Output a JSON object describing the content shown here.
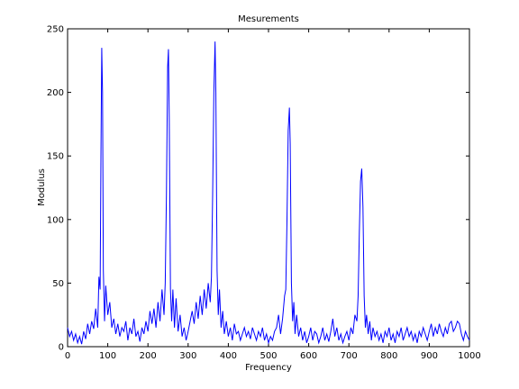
{
  "chart_data": {
    "type": "line",
    "title": "Mesurements",
    "x_label": "Frequency",
    "y_label": "Modulus",
    "x": [
      0,
      5,
      10,
      15,
      20,
      25,
      30,
      35,
      40,
      45,
      50,
      55,
      60,
      65,
      70,
      75,
      78,
      81,
      83,
      85,
      87,
      89,
      92,
      95,
      100,
      105,
      110,
      115,
      120,
      125,
      130,
      135,
      140,
      145,
      150,
      155,
      160,
      165,
      170,
      175,
      180,
      185,
      190,
      195,
      200,
      205,
      210,
      215,
      220,
      225,
      230,
      235,
      240,
      243,
      246,
      249,
      251,
      253,
      256,
      259,
      262,
      266,
      270,
      275,
      280,
      285,
      290,
      295,
      300,
      305,
      310,
      315,
      320,
      325,
      330,
      335,
      340,
      345,
      350,
      355,
      358,
      361,
      364,
      367,
      369,
      372,
      375,
      378,
      382,
      386,
      390,
      395,
      400,
      405,
      410,
      415,
      420,
      425,
      430,
      435,
      440,
      445,
      450,
      455,
      460,
      465,
      470,
      475,
      480,
      485,
      490,
      495,
      500,
      505,
      510,
      515,
      520,
      525,
      530,
      535,
      540,
      543,
      546,
      549,
      552,
      554,
      557,
      560,
      563,
      566,
      570,
      575,
      580,
      585,
      590,
      595,
      600,
      605,
      610,
      615,
      620,
      625,
      630,
      635,
      640,
      645,
      650,
      655,
      660,
      665,
      670,
      675,
      680,
      685,
      690,
      695,
      700,
      705,
      710,
      715,
      720,
      723,
      726,
      729,
      732,
      735,
      738,
      741,
      744,
      748,
      752,
      756,
      760,
      765,
      770,
      775,
      780,
      785,
      790,
      795,
      800,
      805,
      810,
      815,
      820,
      825,
      830,
      835,
      840,
      845,
      850,
      855,
      860,
      865,
      870,
      875,
      880,
      885,
      890,
      895,
      900,
      905,
      910,
      915,
      920,
      925,
      930,
      935,
      940,
      945,
      950,
      955,
      960,
      965,
      970,
      975,
      980,
      985,
      990,
      995,
      1000
    ],
    "values": [
      15,
      8,
      12,
      5,
      10,
      3,
      8,
      2,
      12,
      6,
      18,
      10,
      20,
      14,
      30,
      15,
      55,
      45,
      150,
      235,
      200,
      60,
      20,
      48,
      25,
      35,
      15,
      22,
      10,
      18,
      8,
      15,
      12,
      20,
      5,
      15,
      10,
      22,
      8,
      12,
      4,
      15,
      10,
      20,
      12,
      28,
      18,
      30,
      15,
      35,
      20,
      45,
      25,
      50,
      120,
      220,
      234,
      180,
      45,
      20,
      45,
      15,
      38,
      12,
      25,
      8,
      15,
      5,
      12,
      20,
      28,
      18,
      35,
      22,
      40,
      25,
      45,
      30,
      50,
      35,
      55,
      120,
      200,
      240,
      200,
      60,
      25,
      45,
      15,
      28,
      10,
      20,
      8,
      15,
      5,
      18,
      10,
      12,
      5,
      10,
      15,
      8,
      12,
      6,
      15,
      10,
      5,
      12,
      8,
      15,
      5,
      10,
      3,
      8,
      5,
      12,
      15,
      25,
      10,
      22,
      40,
      45,
      100,
      170,
      188,
      160,
      50,
      20,
      35,
      10,
      25,
      8,
      15,
      5,
      12,
      3,
      8,
      15,
      5,
      12,
      10,
      3,
      8,
      15,
      5,
      10,
      4,
      12,
      22,
      8,
      15,
      5,
      10,
      3,
      8,
      12,
      5,
      15,
      10,
      25,
      20,
      40,
      90,
      130,
      140,
      110,
      40,
      15,
      25,
      10,
      20,
      5,
      15,
      8,
      12,
      5,
      10,
      3,
      12,
      8,
      15,
      5,
      10,
      3,
      12,
      8,
      15,
      5,
      10,
      15,
      8,
      12,
      5,
      10,
      3,
      12,
      8,
      15,
      10,
      5,
      12,
      18,
      8,
      15,
      10,
      18,
      12,
      8,
      15,
      10,
      18,
      20,
      12,
      15,
      20,
      18,
      10,
      5,
      12,
      8,
      5
    ],
    "color": "#0000ff",
    "xlim": [
      0,
      1000
    ],
    "xticks": [
      0,
      100,
      200,
      300,
      400,
      500,
      600,
      700,
      800,
      900,
      1000
    ],
    "ylim": [
      0,
      250
    ],
    "yticks": [
      0,
      50,
      100,
      150,
      200,
      250
    ]
  }
}
